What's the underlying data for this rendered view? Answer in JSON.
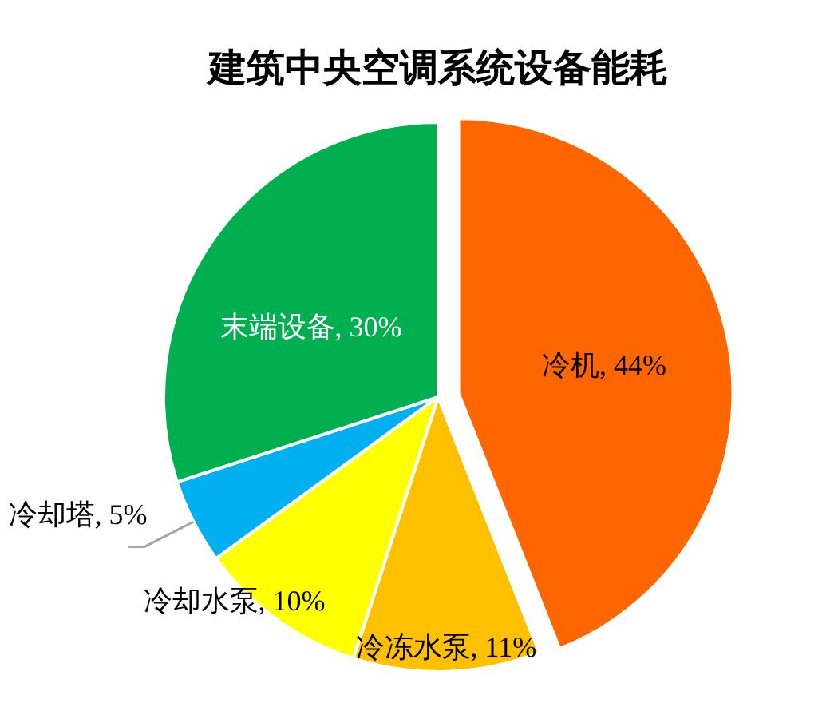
{
  "chart_data": {
    "type": "pie",
    "title": "建筑中央空调系统设备能耗",
    "categories": [
      "冷机",
      "冷冻水泵",
      "冷却水泵",
      "冷却塔",
      "末端设备"
    ],
    "values": [
      44,
      11,
      10,
      5,
      30
    ],
    "colors": [
      "#ff6600",
      "#ffc000",
      "#ffff00",
      "#00b0f0",
      "#00b050"
    ],
    "value_labels": [
      "44%",
      "11%",
      "10%",
      "5%",
      "30%"
    ]
  }
}
